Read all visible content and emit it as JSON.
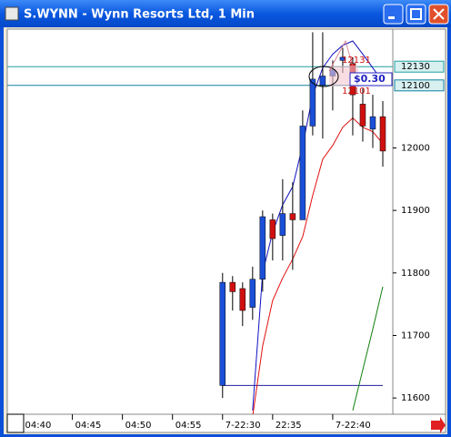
{
  "window": {
    "title": "S.WYNN - Wynn Resorts Ltd, 1 Min"
  },
  "chart_data": {
    "type": "candlestick",
    "x": [
      20,
      21,
      22,
      23,
      24,
      25,
      26,
      27,
      28,
      29,
      30,
      31,
      32,
      33,
      34,
      35,
      36
    ],
    "open": [
      11620,
      11785,
      11775,
      11745,
      11790,
      11885,
      11860,
      11895,
      11885,
      12035,
      12100,
      12115,
      12140,
      12135,
      12070,
      12030,
      12050
    ],
    "high": [
      11800,
      11795,
      11785,
      11810,
      11900,
      11895,
      11950,
      11945,
      12060,
      12185,
      12185,
      12140,
      12160,
      12145,
      12095,
      12085,
      12075
    ],
    "low": [
      11600,
      11740,
      11715,
      11725,
      11770,
      11820,
      11820,
      11805,
      11885,
      12020,
      12015,
      12060,
      12120,
      12020,
      12010,
      12000,
      11970
    ],
    "close": [
      11785,
      11770,
      11740,
      11790,
      11890,
      11855,
      11895,
      11885,
      12035,
      12110,
      12115,
      12125,
      12145,
      12085,
      12035,
      12050,
      11995
    ],
    "up_color": "#1a4fd8",
    "down_color": "#d01010",
    "lines": [
      {
        "color": "#1010c0",
        "values": [
          null,
          null,
          null,
          11580,
          11800,
          11865,
          11909,
          11938,
          12004,
          12084,
          12128,
          12150,
          12164,
          12171,
          12150,
          12128,
          12106
        ]
      },
      {
        "color": "#e01010",
        "values": [
          null,
          null,
          null,
          11570,
          11683,
          11756,
          11792,
          11822,
          11858,
          11924,
          11982,
          12004,
          12033,
          12048,
          12033,
          12026,
          12007
        ]
      },
      {
        "color": "#108010",
        "values": [
          null,
          null,
          null,
          null,
          null,
          null,
          null,
          null,
          null,
          null,
          null,
          null,
          null,
          11580,
          11645,
          11710,
          11778
        ]
      }
    ],
    "segment": {
      "x": [
        20,
        36
      ],
      "y": 11620,
      "color": "#2020a0"
    },
    "hlines": [
      {
        "value": 12130,
        "color": "#20a0a0"
      },
      {
        "value": 12100,
        "color": "#1080a0"
      }
    ],
    "annotations": [
      "12131",
      "12101",
      "$0.30"
    ],
    "xlim": [
      -1.5,
      37
    ],
    "ylim": [
      11574,
      12190
    ],
    "yticks": [
      11600,
      11700,
      11800,
      11900,
      12000
    ],
    "xticks": [
      {
        "value": 0,
        "label": "04:40"
      },
      {
        "value": 5,
        "label": "04:45"
      },
      {
        "value": 10,
        "label": "04:50"
      },
      {
        "value": 15,
        "label": "04:55"
      },
      {
        "value": 20,
        "label": "7-22:30"
      },
      {
        "value": 25,
        "label": "22:35"
      },
      {
        "value": 31,
        "label": "7-22:40"
      }
    ]
  }
}
